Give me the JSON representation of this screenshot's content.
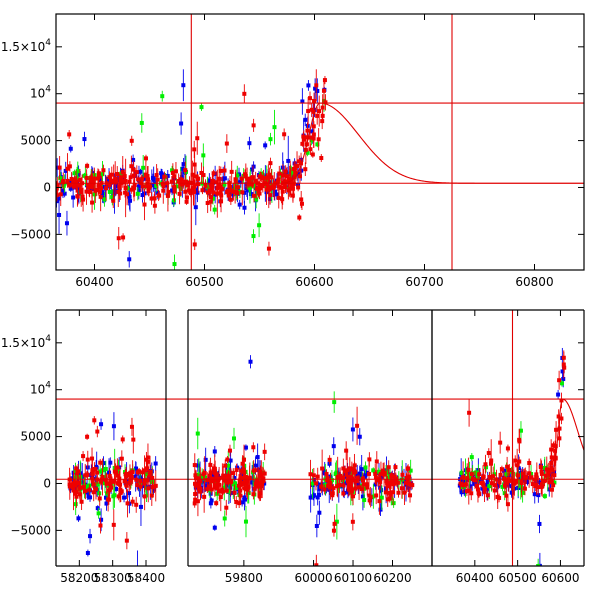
{
  "chart_data": [
    {
      "type": "scatter",
      "title": "",
      "xlabel": "",
      "ylabel": "",
      "xlim": [
        60365,
        60845
      ],
      "ylim": [
        -8800,
        18500
      ],
      "x_ticks": [
        {
          "value": 60400,
          "label": "60400"
        },
        {
          "value": 60500,
          "label": "60500"
        },
        {
          "value": 60600,
          "label": "60600"
        },
        {
          "value": 60700,
          "label": "60700"
        },
        {
          "value": 60800,
          "label": "60800"
        }
      ],
      "y_ticks": [
        {
          "value": 15000,
          "label": "1.5×10⁴",
          "main": "1.5×10",
          "sup": "4"
        },
        {
          "value": 10000,
          "label": "10⁴",
          "main": "10",
          "sup": "4"
        },
        {
          "value": 5000,
          "label": "5000",
          "main": "5000",
          "sup": ""
        },
        {
          "value": 0,
          "label": "0",
          "main": "0",
          "sup": ""
        },
        {
          "value": -5000,
          "label": "−5000",
          "main": "−5000",
          "sup": ""
        }
      ],
      "hlines": [
        9000,
        450
      ],
      "vlines": [
        60488,
        60725
      ],
      "model_curve": {
        "peak_x": 60605,
        "peak_y": 9000,
        "baseline": 450,
        "rise_width": 10,
        "decay_width": 35,
        "x_start": 60565,
        "x_end": 60845
      },
      "series": [
        {
          "color": "#0000ee",
          "x_range": [
            60365,
            60610
          ],
          "points": 170
        },
        {
          "color": "#00ee00",
          "x_range": [
            60365,
            60610
          ],
          "points": 80
        },
        {
          "color": "#ee0000",
          "x_range": [
            60365,
            60610
          ],
          "points": 320
        }
      ],
      "grid": false,
      "legend": "none"
    },
    {
      "type": "scatter",
      "title": "",
      "xlabel": "",
      "ylabel": "",
      "ylim": [
        -8800,
        18500
      ],
      "segments": [
        {
          "xlim": [
            58130,
            58460
          ],
          "ticks": [
            {
              "value": 58200,
              "label": "58200"
            },
            {
              "value": 58300,
              "label": "58300"
            },
            {
              "value": 58400,
              "label": "58400"
            }
          ]
        },
        {
          "xlim": [
            59620,
            59910
          ],
          "ticks": [
            {
              "value": 59800,
              "label": "59800"
            }
          ]
        },
        {
          "xlim": [
            59910,
            60300
          ],
          "ticks": [
            {
              "value": 60000,
              "label": "60000"
            },
            {
              "value": 60100,
              "label": "60100"
            },
            {
              "value": 60200,
              "label": "60200"
            }
          ]
        },
        {
          "xlim": [
            60300,
            60655
          ],
          "ticks": [
            {
              "value": 60400,
              "label": "60400"
            },
            {
              "value": 60500,
              "label": "60500"
            },
            {
              "value": 60600,
              "label": "60600"
            }
          ]
        }
      ],
      "y_ticks": [
        {
          "value": 15000,
          "label": "1.5×10⁴",
          "main": "1.5×10",
          "sup": "4"
        },
        {
          "value": 10000,
          "label": "10⁴",
          "main": "10",
          "sup": "4"
        },
        {
          "value": 5000,
          "label": "5000",
          "main": "5000",
          "sup": ""
        },
        {
          "value": 0,
          "label": "0",
          "main": "0",
          "sup": ""
        },
        {
          "value": -5000,
          "label": "−5000",
          "main": "−5000",
          "sup": ""
        }
      ],
      "hlines": [
        9000,
        450
      ],
      "vlines": [
        60488
      ],
      "data_groups": [
        {
          "x_range": [
            58170,
            58430
          ]
        },
        {
          "x_range": [
            59640,
            59870
          ]
        },
        {
          "x_range": [
            59990,
            60250
          ]
        },
        {
          "x_range": [
            60365,
            60610
          ]
        }
      ],
      "model_curve": {
        "peak_x": 60605,
        "peak_y": 9000,
        "baseline": 450,
        "rise_width": 10,
        "decay_width": 35,
        "x_start": 60565,
        "x_end": 60655
      },
      "series": [
        {
          "color": "#0000ee"
        },
        {
          "color": "#00ee00"
        },
        {
          "color": "#ee0000"
        }
      ],
      "grid": false,
      "legend": "none"
    }
  ]
}
